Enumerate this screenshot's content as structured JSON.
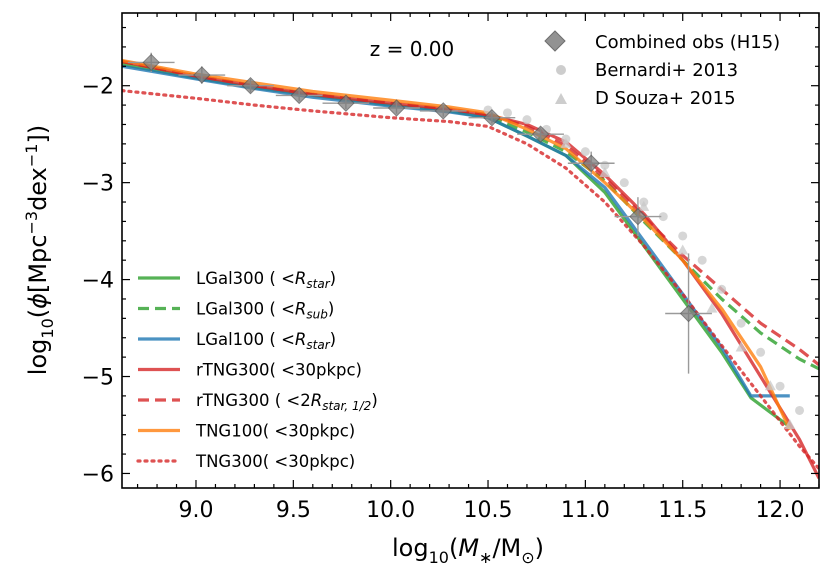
{
  "chart_data": {
    "type": "line",
    "title": "",
    "annotation": "z = 0.00",
    "xlabel": "log10(M*/M⊙)",
    "ylabel": "log10(φ[Mpc^-3 dex^-1])",
    "xlim": [
      8.62,
      12.2
    ],
    "ylim": [
      -6.15,
      -1.25
    ],
    "xticks": [
      9.0,
      9.5,
      10.0,
      10.5,
      11.0,
      11.5,
      12.0
    ],
    "xtick_labels": [
      "9.0",
      "9.5",
      "10.0",
      "10.5",
      "11.0",
      "11.5",
      "12.0"
    ],
    "yticks": [
      -2,
      -3,
      -4,
      -5,
      -6
    ],
    "ytick_labels": [
      "−2",
      "−3",
      "−4",
      "−5",
      "−6"
    ],
    "series": [
      {
        "name": "LGal300 (<R_star)",
        "legend_parts": [
          "LGal300 ( <",
          "R",
          "star",
          ")"
        ],
        "color": "#2ca02c",
        "style": "solid",
        "x": [
          8.62,
          9.0,
          9.3,
          9.6,
          10.0,
          10.3,
          10.5,
          10.7,
          10.9,
          11.1,
          11.3,
          11.5,
          11.7,
          11.85,
          12.05
        ],
        "y": [
          -1.78,
          -1.92,
          -2.02,
          -2.1,
          -2.2,
          -2.26,
          -2.33,
          -2.52,
          -2.72,
          -3.1,
          -3.65,
          -4.2,
          -4.75,
          -5.22,
          -5.52
        ]
      },
      {
        "name": "LGal300 (<R_sub)",
        "legend_parts": [
          "LGal300 ( <",
          "R",
          "sub",
          ")"
        ],
        "color": "#2ca02c",
        "style": "dashed",
        "x": [
          8.62,
          9.0,
          9.3,
          9.6,
          10.0,
          10.3,
          10.5,
          10.7,
          10.9,
          11.1,
          11.3,
          11.5,
          11.7,
          11.9,
          12.1,
          12.2
        ],
        "y": [
          -1.75,
          -1.9,
          -2.0,
          -2.09,
          -2.19,
          -2.25,
          -2.31,
          -2.48,
          -2.68,
          -2.98,
          -3.4,
          -3.8,
          -4.2,
          -4.55,
          -4.82,
          -4.92
        ]
      },
      {
        "name": "LGal100 (<R_star)",
        "legend_parts": [
          "LGal100 ( <",
          "R",
          "star",
          ")"
        ],
        "color": "#1f77b4",
        "style": "solid",
        "x": [
          8.62,
          9.0,
          9.3,
          9.6,
          10.0,
          10.3,
          10.5,
          10.7,
          10.9,
          11.1,
          11.3,
          11.5,
          11.7,
          11.85,
          12.05
        ],
        "y": [
          -1.8,
          -1.93,
          -2.03,
          -2.12,
          -2.21,
          -2.27,
          -2.33,
          -2.52,
          -2.72,
          -3.05,
          -3.6,
          -4.15,
          -4.7,
          -5.2,
          -5.2
        ]
      },
      {
        "name": "rTNG300(<30pkpc)",
        "legend_parts": [
          "rTNG300( <30pkpc)",
          "",
          "",
          ""
        ],
        "color": "#d62728",
        "style": "solid",
        "x": [
          8.62,
          9.0,
          9.3,
          9.6,
          10.0,
          10.3,
          10.5,
          10.7,
          10.9,
          11.1,
          11.3,
          11.5,
          11.7,
          11.9,
          12.1,
          12.2
        ],
        "y": [
          -1.75,
          -1.9,
          -2.0,
          -2.09,
          -2.18,
          -2.24,
          -2.3,
          -2.4,
          -2.58,
          -2.92,
          -3.32,
          -3.8,
          -4.35,
          -5.0,
          -5.65,
          -6.05
        ]
      },
      {
        "name": "rTNG300 (<2R_star,1/2)",
        "legend_parts": [
          "rTNG300 ( <2",
          "R",
          "star, 1/2",
          ")"
        ],
        "color": "#d62728",
        "style": "dashed",
        "x": [
          8.62,
          9.0,
          9.3,
          9.6,
          10.0,
          10.3,
          10.5,
          10.7,
          10.9,
          11.1,
          11.3,
          11.5,
          11.7,
          11.9,
          12.1,
          12.2
        ],
        "y": [
          -1.75,
          -1.9,
          -2.0,
          -2.09,
          -2.18,
          -2.24,
          -2.3,
          -2.42,
          -2.62,
          -2.95,
          -3.35,
          -3.75,
          -4.1,
          -4.45,
          -4.72,
          -4.88
        ]
      },
      {
        "name": "TNG100(<30pkpc)",
        "legend_parts": [
          "TNG100( <30pkpc)",
          "",
          "",
          ""
        ],
        "color": "#ff7f0e",
        "style": "solid",
        "x": [
          8.62,
          9.0,
          9.3,
          9.6,
          10.0,
          10.3,
          10.5,
          10.7,
          10.9,
          11.1,
          11.3,
          11.5,
          11.7,
          11.9,
          12.05
        ],
        "y": [
          -1.74,
          -1.88,
          -1.97,
          -2.06,
          -2.15,
          -2.22,
          -2.28,
          -2.45,
          -2.65,
          -3.0,
          -3.38,
          -3.8,
          -4.3,
          -4.9,
          -5.55
        ]
      },
      {
        "name": "TNG300(<30pkpc)",
        "legend_parts": [
          "TNG300( <30pkpc)",
          "",
          "",
          ""
        ],
        "color": "#d62728",
        "style": "dotted",
        "x": [
          8.62,
          9.0,
          9.3,
          9.6,
          10.0,
          10.3,
          10.5,
          10.7,
          10.9,
          11.1,
          11.3,
          11.5,
          11.7,
          11.9,
          12.1,
          12.2
        ],
        "y": [
          -2.05,
          -2.13,
          -2.2,
          -2.26,
          -2.33,
          -2.37,
          -2.42,
          -2.6,
          -2.85,
          -3.2,
          -3.65,
          -4.15,
          -4.68,
          -5.2,
          -5.72,
          -5.95
        ]
      }
    ],
    "observations": [
      {
        "name": "Combined obs (H15)",
        "marker": "diamond",
        "color": "#7f7f7f",
        "x": [
          8.77,
          9.03,
          9.28,
          9.53,
          9.77,
          10.03,
          10.27,
          10.52,
          10.77,
          11.03,
          11.27,
          11.53
        ],
        "y": [
          -1.76,
          -1.89,
          -2.0,
          -2.1,
          -2.18,
          -2.23,
          -2.26,
          -2.33,
          -2.5,
          -2.8,
          -3.35,
          -4.35
        ],
        "xerr": [
          0.12,
          0.12,
          0.12,
          0.12,
          0.12,
          0.12,
          0.12,
          0.12,
          0.12,
          0.12,
          0.12,
          0.12
        ],
        "yerr": [
          0.1,
          0.09,
          0.07,
          0.06,
          0.06,
          0.06,
          0.06,
          0.06,
          0.07,
          0.12,
          0.2,
          0.62
        ]
      },
      {
        "name": "Bernardi+ 2013",
        "marker": "circle",
        "color": "#c8c8c8",
        "x": [
          10.5,
          10.6,
          10.7,
          10.8,
          10.9,
          11.0,
          11.1,
          11.2,
          11.3,
          11.4,
          11.5,
          11.6,
          11.7,
          11.8,
          11.9,
          12.0,
          12.1
        ],
        "y": [
          -2.25,
          -2.28,
          -2.35,
          -2.45,
          -2.55,
          -2.68,
          -2.82,
          -3.0,
          -3.2,
          -3.35,
          -3.55,
          -3.8,
          -4.1,
          -4.45,
          -4.75,
          -5.1,
          -5.35
        ]
      },
      {
        "name": "D Souza+ 2015",
        "marker": "triangle",
        "color": "#c8c8c8",
        "x": [
          10.9,
          11.1,
          11.3,
          11.5,
          11.65,
          11.8,
          11.95,
          12.05
        ],
        "y": [
          -2.6,
          -2.9,
          -3.25,
          -3.7,
          -4.3,
          -4.7,
          -5.1,
          -5.5
        ]
      }
    ]
  }
}
